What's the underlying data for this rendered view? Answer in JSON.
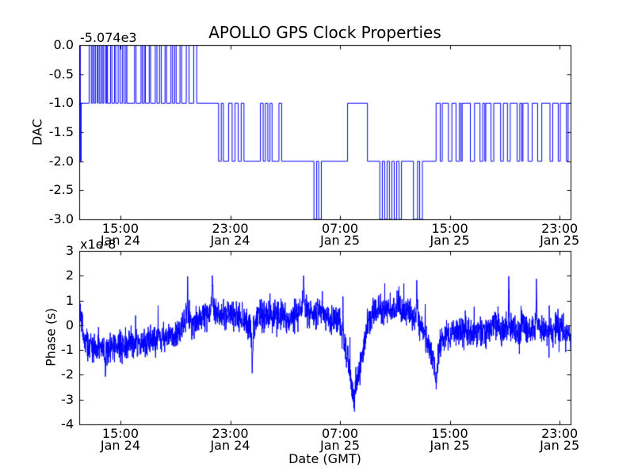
{
  "figure": {
    "bg_color": "#ffffff",
    "frame_color": "#000000",
    "line_color": "#0000ff",
    "title": "APOLLO GPS Clock Properties",
    "xlabel": "Date (GMT)"
  },
  "chart_data": [
    {
      "type": "line",
      "subplot": "top",
      "series_name": "DAC",
      "title": "APOLLO GPS Clock Properties",
      "ylabel": "DAC",
      "offset_text": "-5.074e3",
      "offset_meaning": "actual DAC value = tick value + (-5074)",
      "line_style": "steps",
      "xlim": [
        0,
        35.8
      ],
      "x_unit": "hours from axis left edge (left edge ~ Jan 24 12:00 GMT)",
      "ylim": [
        -3.0,
        0.0
      ],
      "grid": false,
      "legend": "none",
      "xticks": {
        "values": [
          3,
          11,
          19,
          27,
          35
        ],
        "labels": [
          "15:00\nJan 24",
          "23:00\nJan 24",
          "07:00\nJan 25",
          "15:00\nJan 25",
          "23:00\nJan 25"
        ]
      },
      "yticks": {
        "values": [
          0,
          -0.5,
          -1,
          -1.5,
          -2,
          -2.5,
          -3
        ],
        "labels": [
          "0.0",
          "-0.5",
          "-1.0",
          "-1.5",
          "-2.0",
          "-2.5",
          "-3.0"
        ]
      },
      "steps": [
        [
          0,
          0
        ],
        [
          0.08,
          -2
        ],
        [
          0.14,
          -1
        ],
        [
          0.72,
          0
        ],
        [
          0.88,
          -1
        ],
        [
          0.98,
          0
        ],
        [
          1.08,
          -1
        ],
        [
          1.18,
          0
        ],
        [
          1.32,
          -1
        ],
        [
          1.36,
          0
        ],
        [
          1.46,
          -1
        ],
        [
          1.58,
          0
        ],
        [
          1.68,
          -1
        ],
        [
          1.78,
          0
        ],
        [
          1.92,
          -1
        ],
        [
          2.0,
          0
        ],
        [
          2.06,
          -1
        ],
        [
          2.28,
          0
        ],
        [
          2.38,
          -1
        ],
        [
          2.57,
          0
        ],
        [
          2.66,
          -1
        ],
        [
          2.84,
          0
        ],
        [
          2.98,
          -1
        ],
        [
          3.14,
          0
        ],
        [
          3.26,
          -1
        ],
        [
          3.4,
          0
        ],
        [
          3.47,
          -1
        ],
        [
          4.03,
          0
        ],
        [
          4.14,
          -1
        ],
        [
          4.5,
          0
        ],
        [
          4.6,
          -1
        ],
        [
          4.74,
          0
        ],
        [
          4.82,
          -1
        ],
        [
          5.1,
          0
        ],
        [
          5.2,
          -1
        ],
        [
          5.54,
          0
        ],
        [
          5.66,
          -1
        ],
        [
          5.85,
          0
        ],
        [
          5.98,
          -1
        ],
        [
          6.25,
          0
        ],
        [
          6.36,
          -1
        ],
        [
          6.68,
          0
        ],
        [
          6.8,
          -1
        ],
        [
          6.95,
          0
        ],
        [
          7.06,
          -1
        ],
        [
          7.34,
          0
        ],
        [
          7.46,
          -1
        ],
        [
          7.8,
          0
        ],
        [
          8.0,
          -1
        ],
        [
          8.34,
          0
        ],
        [
          8.56,
          -1
        ],
        [
          10.15,
          -2
        ],
        [
          10.35,
          -1
        ],
        [
          10.5,
          -2
        ],
        [
          10.88,
          -1
        ],
        [
          11.14,
          -2
        ],
        [
          11.35,
          -1
        ],
        [
          11.58,
          -2
        ],
        [
          11.8,
          -1
        ],
        [
          12.0,
          -2
        ],
        [
          13.2,
          -1
        ],
        [
          13.4,
          -2
        ],
        [
          13.56,
          -1
        ],
        [
          13.74,
          -2
        ],
        [
          13.9,
          -1
        ],
        [
          14.05,
          -2
        ],
        [
          14.55,
          -1
        ],
        [
          14.75,
          -2
        ],
        [
          17.1,
          -3
        ],
        [
          17.3,
          -2
        ],
        [
          17.45,
          -3
        ],
        [
          17.64,
          -2
        ],
        [
          19.55,
          -1
        ],
        [
          21.0,
          -2
        ],
        [
          21.9,
          -3
        ],
        [
          22.08,
          -2
        ],
        [
          22.25,
          -3
        ],
        [
          22.43,
          -2
        ],
        [
          22.6,
          -3
        ],
        [
          22.78,
          -2
        ],
        [
          22.95,
          -3
        ],
        [
          23.13,
          -2
        ],
        [
          23.3,
          -3
        ],
        [
          23.48,
          -2
        ],
        [
          24.35,
          -3
        ],
        [
          24.65,
          -2
        ],
        [
          24.8,
          -3
        ],
        [
          25.0,
          -2
        ],
        [
          26.0,
          -1
        ],
        [
          26.3,
          -2
        ],
        [
          26.45,
          -1
        ],
        [
          26.9,
          -2
        ],
        [
          27.15,
          -1
        ],
        [
          27.45,
          -2
        ],
        [
          27.7,
          -1
        ],
        [
          27.82,
          -2
        ],
        [
          27.9,
          -1
        ],
        [
          28.5,
          -2
        ],
        [
          28.8,
          -1
        ],
        [
          29.2,
          -2
        ],
        [
          29.4,
          -1
        ],
        [
          29.55,
          -2
        ],
        [
          29.62,
          -1
        ],
        [
          30.0,
          -2
        ],
        [
          30.2,
          -1
        ],
        [
          30.7,
          -2
        ],
        [
          30.9,
          -1
        ],
        [
          31.2,
          -2
        ],
        [
          31.4,
          -1
        ],
        [
          31.9,
          -2
        ],
        [
          32.1,
          -1
        ],
        [
          32.25,
          -2
        ],
        [
          32.33,
          -1
        ],
        [
          32.7,
          -2
        ],
        [
          33.0,
          -1
        ],
        [
          33.4,
          -2
        ],
        [
          33.7,
          -1
        ],
        [
          34.3,
          -2
        ],
        [
          34.5,
          -1
        ],
        [
          34.9,
          -2
        ],
        [
          35.05,
          -1
        ],
        [
          35.5,
          -2
        ],
        [
          35.62,
          -1
        ]
      ]
    },
    {
      "type": "line",
      "subplot": "bottom",
      "series_name": "Phase",
      "ylabel": "Phase (s)",
      "offset_text": "x1e-8",
      "offset_meaning": "y values are in units of 1e-8 seconds",
      "xlabel": "Date (GMT)",
      "xlim": [
        0,
        35.8
      ],
      "x_unit": "hours from axis left edge (left edge ~ Jan 24 12:00 GMT)",
      "ylim": [
        -4,
        3
      ],
      "grid": false,
      "legend": "none",
      "xticks": {
        "values": [
          3,
          11,
          19,
          27,
          35
        ],
        "labels": [
          "15:00\nJan 24",
          "23:00\nJan 24",
          "07:00\nJan 25",
          "15:00\nJan 25",
          "23:00\nJan 25"
        ]
      },
      "yticks": {
        "values": [
          3,
          2,
          1,
          0,
          -1,
          -2,
          -3,
          -4
        ],
        "labels": [
          "3",
          "2",
          "1",
          "0",
          "-1",
          "-2",
          "-3",
          "-4"
        ]
      },
      "envelope_note": "mean trend of noisy trace in 1e-8 s; rendered with gaussian jitter",
      "noise_sigma": 0.3,
      "spike_prob": 0.02,
      "spike_scale": 0.8,
      "samples": 2600,
      "seed": 42,
      "envelope": [
        [
          0,
          1.2
        ],
        [
          0.1,
          0.6
        ],
        [
          0.3,
          -0.4
        ],
        [
          0.6,
          -0.8
        ],
        [
          1.0,
          -0.9
        ],
        [
          1.5,
          -1.0
        ],
        [
          1.85,
          -0.95
        ],
        [
          1.9,
          -2.2
        ],
        [
          1.95,
          -0.95
        ],
        [
          2.3,
          -0.9
        ],
        [
          2.7,
          -0.95
        ],
        [
          3.0,
          -0.8
        ],
        [
          3.5,
          -0.75
        ],
        [
          4.0,
          -0.7
        ],
        [
          4.5,
          -0.8
        ],
        [
          5.0,
          -0.6
        ],
        [
          5.5,
          -0.55
        ],
        [
          6.0,
          -0.5
        ],
        [
          6.5,
          -0.4
        ],
        [
          7.0,
          -0.45
        ],
        [
          7.5,
          -0.1
        ],
        [
          7.85,
          0.3
        ],
        [
          7.9,
          2.0
        ],
        [
          7.95,
          0.2
        ],
        [
          8.3,
          0.1
        ],
        [
          8.7,
          0.25
        ],
        [
          9.0,
          0.3
        ],
        [
          9.4,
          0.5
        ],
        [
          9.65,
          0.7
        ],
        [
          9.7,
          2.1
        ],
        [
          9.78,
          0.6
        ],
        [
          10.1,
          0.45
        ],
        [
          10.5,
          0.4
        ],
        [
          11.0,
          0.5
        ],
        [
          11.5,
          0.3
        ],
        [
          12.0,
          0.2
        ],
        [
          12.5,
          -0.2
        ],
        [
          12.55,
          -0.2
        ],
        [
          12.6,
          -1.9
        ],
        [
          12.68,
          -0.1
        ],
        [
          13.0,
          0.3
        ],
        [
          13.5,
          0.4
        ],
        [
          14.0,
          0.3
        ],
        [
          14.5,
          0.5
        ],
        [
          15.0,
          0.2
        ],
        [
          15.5,
          0.4
        ],
        [
          16.0,
          0.6
        ],
        [
          16.3,
          0.8
        ],
        [
          16.35,
          2.0
        ],
        [
          16.45,
          0.5
        ],
        [
          17.0,
          0.6
        ],
        [
          17.3,
          0.3
        ],
        [
          17.6,
          0.7
        ],
        [
          18.0,
          0.4
        ],
        [
          18.3,
          0.2
        ],
        [
          18.6,
          0.4
        ],
        [
          19.0,
          0.1
        ],
        [
          19.3,
          -0.5
        ],
        [
          19.6,
          -1.4
        ],
        [
          19.85,
          -2.5
        ],
        [
          20.0,
          -3.0
        ],
        [
          20.2,
          -2.3
        ],
        [
          20.5,
          -1.6
        ],
        [
          20.8,
          -0.6
        ],
        [
          21.1,
          0.3
        ],
        [
          21.4,
          0.6
        ],
        [
          22.0,
          0.5
        ],
        [
          22.3,
          0.8
        ],
        [
          22.6,
          0.6
        ],
        [
          23.0,
          0.7
        ],
        [
          23.3,
          0.9
        ],
        [
          23.6,
          0.5
        ],
        [
          24.0,
          0.6
        ],
        [
          24.3,
          0.3
        ],
        [
          24.55,
          0.3
        ],
        [
          24.6,
          1.6
        ],
        [
          24.68,
          0.2
        ],
        [
          25.0,
          -0.2
        ],
        [
          25.4,
          -0.8
        ],
        [
          25.8,
          -1.4
        ],
        [
          26.0,
          -2.2
        ],
        [
          26.15,
          -1.2
        ],
        [
          26.3,
          -0.8
        ],
        [
          26.5,
          -0.55
        ],
        [
          27.0,
          -0.4
        ],
        [
          27.5,
          -0.3
        ],
        [
          28.0,
          -0.2
        ],
        [
          28.5,
          -0.3
        ],
        [
          29.0,
          -0.25
        ],
        [
          29.5,
          -0.3
        ],
        [
          30.0,
          -0.2
        ],
        [
          30.3,
          0.3
        ],
        [
          30.6,
          -0.1
        ],
        [
          31.0,
          -0.3
        ],
        [
          31.25,
          -0.2
        ],
        [
          31.3,
          1.4
        ],
        [
          31.38,
          -0.2
        ],
        [
          31.7,
          -0.25
        ],
        [
          32.0,
          -0.4
        ],
        [
          32.3,
          0.4
        ],
        [
          32.6,
          -0.1
        ],
        [
          33.0,
          -0.2
        ],
        [
          33.25,
          -0.1
        ],
        [
          33.3,
          1.5
        ],
        [
          33.38,
          -0.1
        ],
        [
          33.7,
          -0.15
        ],
        [
          34.0,
          -0.1
        ],
        [
          34.5,
          -0.3
        ],
        [
          35.0,
          -0.1
        ],
        [
          35.45,
          -0.4
        ],
        [
          35.8,
          -0.3
        ]
      ]
    }
  ]
}
